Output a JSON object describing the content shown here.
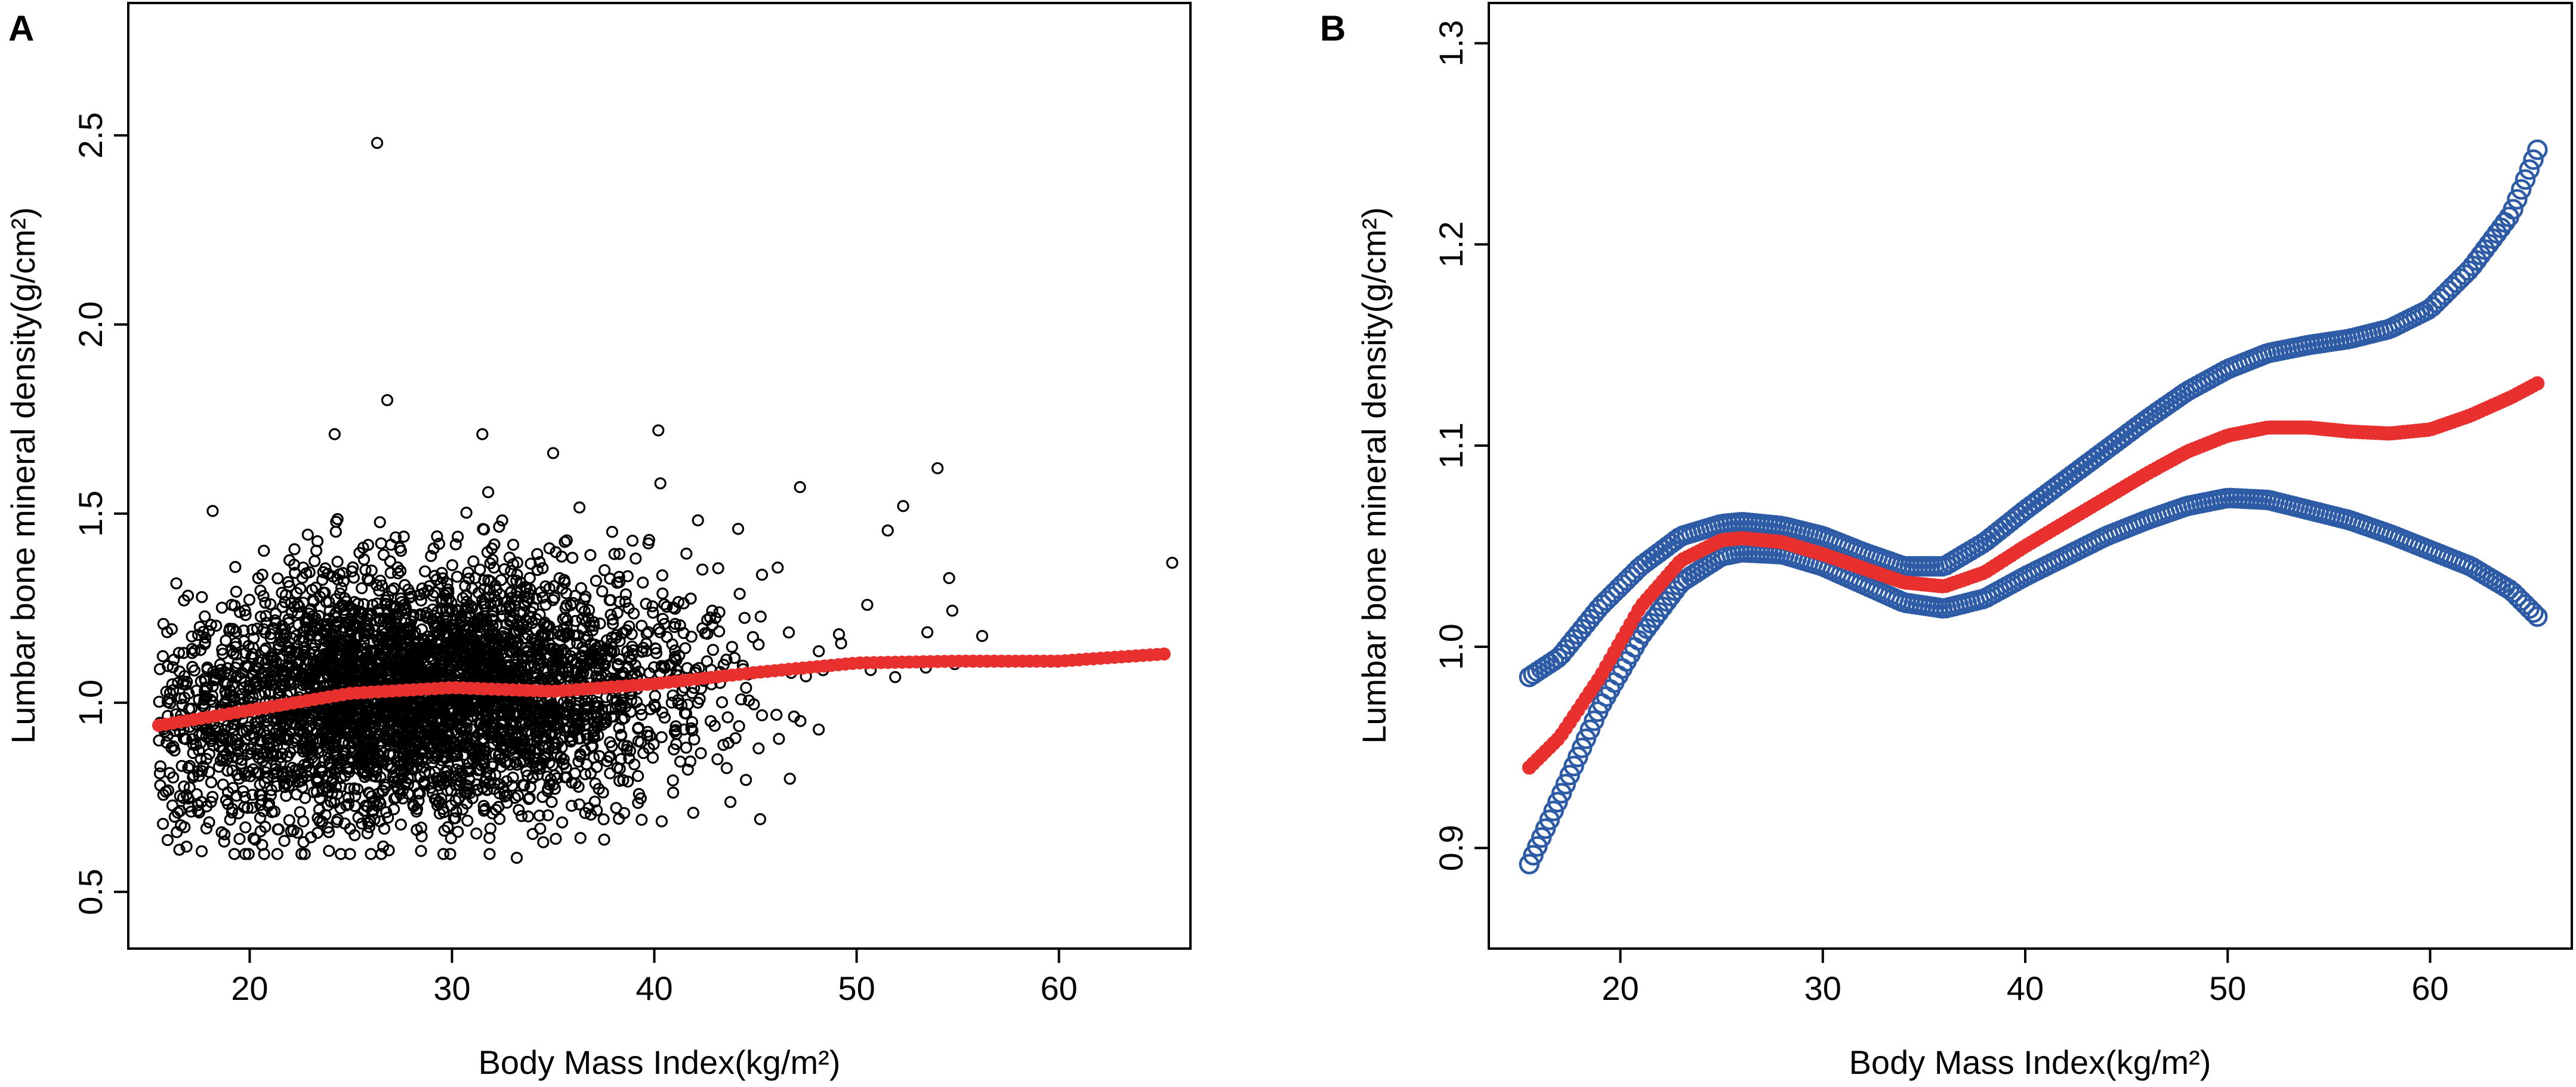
{
  "chart_data": [
    {
      "panel_label": "A",
      "type": "scatter",
      "title": "",
      "xlabel": "Body Mass Index(kg/m²)",
      "ylabel": "Lumbar bone mineral density(g/cm²)",
      "xlim": [
        14,
        66.5
      ],
      "ylim": [
        0.35,
        2.85
      ],
      "xticks": [
        20,
        30,
        40,
        50,
        60
      ],
      "yticks": [
        0.5,
        1.0,
        1.5,
        2.0,
        2.5
      ],
      "ytick_labels": [
        "0.5",
        "1.0",
        "1.5",
        "2.0",
        "2.5"
      ],
      "series": [
        {
          "name": "observations",
          "marker": "open-circle",
          "color": "#000000",
          "n_points": 4000,
          "notable_points": [
            [
              26.3,
              2.48
            ],
            [
              26.8,
              1.8
            ],
            [
              24.2,
              1.71
            ],
            [
              31.5,
              1.71
            ],
            [
              40.2,
              1.72
            ],
            [
              35.0,
              1.66
            ],
            [
              54.0,
              1.62
            ],
            [
              40.3,
              1.58
            ],
            [
              52.3,
              1.52
            ],
            [
              47.2,
              1.57
            ],
            [
              65.6,
              1.37
            ],
            [
              33.2,
              0.59
            ],
            [
              26.6,
              0.62
            ],
            [
              19.5,
              0.64
            ]
          ]
        },
        {
          "name": "fitted",
          "marker": "filled-circle",
          "color": "#e8312e",
          "x": [
            15.5,
            20,
            25,
            30,
            35,
            40,
            45,
            50,
            55,
            60,
            65.5
          ],
          "y": [
            0.94,
            0.98,
            1.025,
            1.04,
            1.03,
            1.05,
            1.08,
            1.105,
            1.11,
            1.11,
            1.13
          ]
        }
      ]
    },
    {
      "panel_label": "B",
      "type": "line",
      "title": "",
      "xlabel": "Body Mass Index(kg/m²)",
      "ylabel": "Lumbar bone mineral density(g/cm²)",
      "xlim": [
        13.5,
        67
      ],
      "ylim": [
        0.85,
        1.32
      ],
      "xticks": [
        20,
        30,
        40,
        50,
        60
      ],
      "yticks": [
        0.9,
        1.0,
        1.1,
        1.2,
        1.3
      ],
      "ytick_labels": [
        "0.9",
        "1.0",
        "1.1",
        "1.2",
        "1.3"
      ],
      "series": [
        {
          "name": "fitted",
          "marker": "filled-circle",
          "color": "#e8312e",
          "x": [
            15.5,
            17,
            19,
            21,
            23,
            25,
            26,
            28,
            30,
            32,
            34,
            36,
            38,
            40,
            42,
            44,
            46,
            48,
            50,
            52,
            54,
            56,
            58,
            60,
            62,
            64,
            65.5
          ],
          "y": [
            0.94,
            0.955,
            0.985,
            1.02,
            1.043,
            1.053,
            1.054,
            1.052,
            1.046,
            1.039,
            1.032,
            1.03,
            1.037,
            1.05,
            1.062,
            1.074,
            1.086,
            1.097,
            1.105,
            1.109,
            1.109,
            1.107,
            1.106,
            1.108,
            1.115,
            1.124,
            1.132
          ]
        },
        {
          "name": "upper 95% CI",
          "marker": "open-circle",
          "color": "#2e5ba6",
          "x": [
            15.5,
            17,
            19,
            21,
            23,
            25,
            26,
            28,
            30,
            32,
            34,
            36,
            38,
            40,
            42,
            44,
            46,
            48,
            50,
            52,
            54,
            56,
            58,
            60,
            62,
            64,
            65.5
          ],
          "y": [
            0.985,
            0.995,
            1.02,
            1.04,
            1.055,
            1.061,
            1.062,
            1.06,
            1.055,
            1.047,
            1.04,
            1.04,
            1.052,
            1.068,
            1.083,
            1.098,
            1.113,
            1.127,
            1.138,
            1.146,
            1.15,
            1.153,
            1.158,
            1.168,
            1.188,
            1.215,
            1.252
          ]
        },
        {
          "name": "lower 95% CI",
          "marker": "open-circle",
          "color": "#2e5ba6",
          "x": [
            15.5,
            17,
            19,
            21,
            23,
            25,
            26,
            28,
            30,
            32,
            34,
            36,
            38,
            40,
            42,
            44,
            46,
            48,
            50,
            52,
            54,
            56,
            58,
            60,
            62,
            64,
            65.5
          ],
          "y": [
            0.892,
            0.925,
            0.97,
            1.005,
            1.032,
            1.045,
            1.047,
            1.046,
            1.04,
            1.031,
            1.022,
            1.019,
            1.024,
            1.035,
            1.045,
            1.055,
            1.063,
            1.07,
            1.074,
            1.073,
            1.068,
            1.063,
            1.056,
            1.048,
            1.04,
            1.028,
            1.013
          ]
        }
      ]
    }
  ]
}
